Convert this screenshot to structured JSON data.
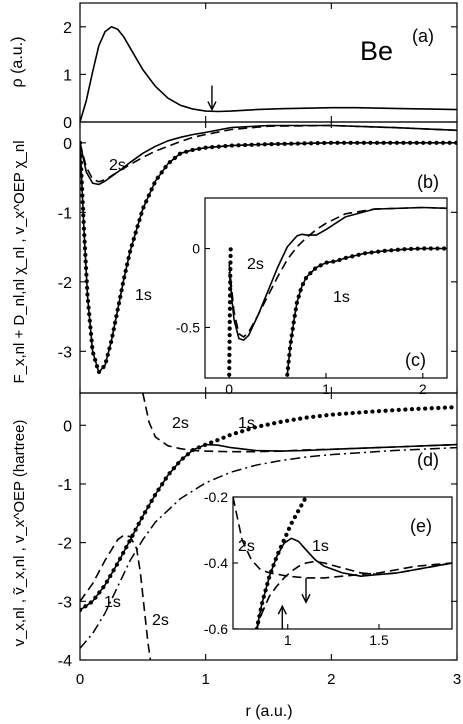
{
  "figure": {
    "element_label": "Be",
    "xlabel": "r (a.u.)",
    "x_ticks": [
      "0",
      "1",
      "2",
      "3"
    ]
  },
  "chart_data": [
    {
      "panel": "(a)",
      "type": "line",
      "ylabel": "ρ (a.u.)",
      "xlim": [
        0,
        3
      ],
      "ylim": [
        0,
        2.5
      ],
      "y_ticks": [
        0,
        1,
        2
      ],
      "annotations": [
        {
          "type": "arrow-down",
          "x": 1.05,
          "y": 0.22
        }
      ],
      "series": [
        {
          "style": "solid",
          "x": [
            0,
            0.05,
            0.1,
            0.15,
            0.2,
            0.25,
            0.3,
            0.35,
            0.4,
            0.5,
            0.6,
            0.7,
            0.8,
            0.9,
            1.0,
            1.1,
            1.2,
            1.4,
            1.6,
            1.8,
            2.0,
            2.2,
            2.4,
            2.6,
            2.8,
            3.0
          ],
          "y": [
            0,
            0.45,
            1.05,
            1.6,
            1.9,
            2.0,
            1.95,
            1.78,
            1.55,
            1.1,
            0.75,
            0.5,
            0.35,
            0.27,
            0.23,
            0.22,
            0.23,
            0.26,
            0.28,
            0.29,
            0.3,
            0.3,
            0.29,
            0.28,
            0.27,
            0.26
          ]
        }
      ]
    },
    {
      "panel": "(b)",
      "type": "line",
      "ylabel": "F_x,nl + D_nl,nl χ_nl , v_x^OEP χ_nl",
      "xlim": [
        0,
        3
      ],
      "ylim": [
        -3.6,
        0.3
      ],
      "y_ticks": [
        0,
        -1,
        -2,
        -3
      ],
      "labels": [
        "2s",
        "1s"
      ],
      "series": [
        {
          "style": "solid",
          "label": "2s",
          "x": [
            0,
            0.05,
            0.1,
            0.15,
            0.2,
            0.3,
            0.4,
            0.5,
            0.6,
            0.7,
            0.8,
            0.9,
            1.0,
            1.2,
            1.5,
            2.0,
            2.5,
            3.0
          ],
          "y": [
            0,
            -0.42,
            -0.58,
            -0.6,
            -0.55,
            -0.42,
            -0.28,
            -0.15,
            -0.05,
            0.03,
            0.08,
            0.12,
            0.15,
            0.22,
            0.25,
            0.25,
            0.22,
            0.18
          ]
        },
        {
          "style": "dashed",
          "label": "2s",
          "x": [
            0,
            0.05,
            0.1,
            0.15,
            0.2,
            0.3,
            0.4,
            0.5,
            0.6,
            0.7,
            0.8,
            0.9,
            1.0,
            1.2,
            1.5,
            2.0,
            2.5,
            3.0
          ],
          "y": [
            0,
            -0.35,
            -0.52,
            -0.56,
            -0.53,
            -0.42,
            -0.31,
            -0.21,
            -0.12,
            -0.05,
            0.02,
            0.08,
            0.12,
            0.19,
            0.24,
            0.25,
            0.22,
            0.18
          ]
        },
        {
          "style": "solid",
          "label": "1s",
          "x": [
            0,
            0.03,
            0.06,
            0.1,
            0.15,
            0.2,
            0.25,
            0.3,
            0.35,
            0.4,
            0.5,
            0.6,
            0.7,
            0.8,
            0.9,
            1.0,
            1.2,
            1.5,
            2.0,
            2.5,
            3.0
          ],
          "y": [
            0,
            -1.2,
            -2.2,
            -3.0,
            -3.3,
            -3.2,
            -2.85,
            -2.4,
            -1.95,
            -1.55,
            -0.95,
            -0.55,
            -0.3,
            -0.15,
            -0.1,
            -0.07,
            -0.04,
            -0.02,
            0,
            0,
            0
          ]
        },
        {
          "style": "dotted",
          "label": "1s",
          "x": [
            0,
            0.03,
            0.06,
            0.1,
            0.15,
            0.2,
            0.25,
            0.3,
            0.35,
            0.4,
            0.5,
            0.6,
            0.7,
            0.8,
            0.9,
            1.0,
            1.2,
            1.5,
            2.0,
            2.5,
            3.0
          ],
          "y": [
            0,
            -1.2,
            -2.2,
            -3.0,
            -3.3,
            -3.2,
            -2.85,
            -2.4,
            -1.95,
            -1.55,
            -0.95,
            -0.55,
            -0.3,
            -0.15,
            -0.1,
            -0.07,
            -0.04,
            -0.02,
            0,
            0,
            0
          ]
        }
      ]
    },
    {
      "panel": "(c)",
      "type": "line",
      "inset_of": "(b)",
      "xlim": [
        -0.25,
        2.25
      ],
      "ylim": [
        -0.82,
        0.32
      ],
      "x_ticks": [
        0,
        1,
        2
      ],
      "y_ticks": [
        0.0,
        -0.5
      ],
      "labels": [
        "2s",
        "1s"
      ],
      "series": [
        {
          "style": "solid",
          "label": "2s",
          "x": [
            0,
            0.05,
            0.1,
            0.15,
            0.2,
            0.3,
            0.4,
            0.5,
            0.6,
            0.7,
            0.75,
            0.8,
            0.9,
            1.0,
            1.2,
            1.5,
            2.0,
            2.25
          ],
          "y": [
            -0.15,
            -0.45,
            -0.57,
            -0.58,
            -0.55,
            -0.42,
            -0.27,
            -0.12,
            0.01,
            0.08,
            0.09,
            0.085,
            0.085,
            0.12,
            0.2,
            0.25,
            0.26,
            0.255
          ]
        },
        {
          "style": "dashed",
          "label": "2s",
          "x": [
            0,
            0.05,
            0.1,
            0.15,
            0.2,
            0.3,
            0.4,
            0.5,
            0.6,
            0.7,
            0.8,
            0.9,
            1.0,
            1.2,
            1.5,
            2.0,
            2.25
          ],
          "y": [
            -0.1,
            -0.4,
            -0.54,
            -0.56,
            -0.53,
            -0.42,
            -0.3,
            -0.18,
            -0.07,
            0.01,
            0.07,
            0.12,
            0.16,
            0.22,
            0.25,
            0.26,
            0.255
          ]
        },
        {
          "style": "solid",
          "label": "1s",
          "x": [
            0.6,
            0.63,
            0.67,
            0.7,
            0.75,
            0.8,
            0.9,
            1.0,
            1.1,
            1.2,
            1.4,
            1.6,
            1.8,
            2.0,
            2.25
          ],
          "y": [
            -0.8,
            -0.62,
            -0.45,
            -0.34,
            -0.24,
            -0.18,
            -0.12,
            -0.09,
            -0.08,
            -0.06,
            -0.03,
            -0.015,
            -0.005,
            0,
            0
          ]
        },
        {
          "style": "dotted",
          "label": "1s",
          "x": [
            0.6,
            0.63,
            0.67,
            0.7,
            0.75,
            0.8,
            0.9,
            1.0,
            1.1,
            1.2,
            1.4,
            1.6,
            1.8,
            2.0,
            2.25
          ],
          "y": [
            -0.8,
            -0.62,
            -0.45,
            -0.34,
            -0.24,
            -0.18,
            -0.12,
            -0.09,
            -0.08,
            -0.06,
            -0.03,
            -0.015,
            -0.005,
            0,
            0
          ]
        },
        {
          "style": "dotted",
          "label": "1s",
          "x": [
            0.0,
            0.005,
            0.01,
            0.015
          ],
          "y": [
            -0.8,
            -0.5,
            -0.2,
            0.0
          ]
        }
      ]
    },
    {
      "panel": "(d)",
      "type": "line",
      "ylabel": "v_x,nl , ṽ_x,nl , v_x^OEP (hartree)",
      "xlim": [
        0,
        3
      ],
      "ylim": [
        -4,
        0.55
      ],
      "y_ticks": [
        0,
        -1,
        -2,
        -3,
        -4
      ],
      "labels": [
        "2s",
        "1s",
        "1s",
        "2s"
      ],
      "series": [
        {
          "style": "solid",
          "x": [
            0,
            0.1,
            0.2,
            0.3,
            0.4,
            0.5,
            0.6,
            0.7,
            0.8,
            0.9,
            1.0,
            1.1,
            1.2,
            1.4,
            1.6,
            1.8,
            2.0,
            2.5,
            3.0
          ],
          "y": [
            -3.15,
            -3.0,
            -2.72,
            -2.35,
            -1.95,
            -1.55,
            -1.18,
            -0.85,
            -0.6,
            -0.42,
            -0.33,
            -0.34,
            -0.38,
            -0.43,
            -0.44,
            -0.43,
            -0.41,
            -0.37,
            -0.33
          ]
        },
        {
          "style": "dotted",
          "x": [
            0,
            0.1,
            0.2,
            0.3,
            0.4,
            0.5,
            0.6,
            0.7,
            0.8,
            0.9,
            1.0,
            1.1,
            1.2,
            1.4,
            1.6,
            1.8,
            2.0,
            2.3,
            2.6,
            3.0
          ],
          "y": [
            -3.15,
            -3.0,
            -2.72,
            -2.35,
            -1.95,
            -1.55,
            -1.18,
            -0.85,
            -0.6,
            -0.42,
            -0.33,
            -0.25,
            -0.16,
            -0.03,
            0.06,
            0.13,
            0.18,
            0.23,
            0.27,
            0.31
          ]
        },
        {
          "style": "dashed",
          "label": "2s",
          "x": [
            0.5,
            0.55,
            0.6,
            0.7,
            0.8,
            0.9,
            1.0,
            1.2,
            1.4,
            1.6,
            1.8,
            2.0,
            2.5,
            3.0
          ],
          "y": [
            0.55,
            0.05,
            -0.2,
            -0.35,
            -0.4,
            -0.43,
            -0.44,
            -0.45,
            -0.45,
            -0.44,
            -0.42,
            -0.41,
            -0.37,
            -0.33
          ]
        },
        {
          "style": "dashed",
          "label": "2s",
          "x": [
            0,
            0.1,
            0.2,
            0.3,
            0.35,
            0.4,
            0.45,
            0.48,
            0.51,
            0.54,
            0.56
          ],
          "y": [
            -3.0,
            -2.7,
            -2.3,
            -1.95,
            -1.87,
            -1.9,
            -2.1,
            -2.5,
            -3.1,
            -3.7,
            -4.0
          ]
        },
        {
          "style": "dashdot",
          "label": "1s",
          "x": [
            0,
            0.1,
            0.2,
            0.3,
            0.4,
            0.5,
            0.6,
            0.8,
            1.0,
            1.2,
            1.4,
            1.6,
            1.8,
            2.0,
            2.5,
            3.0
          ],
          "y": [
            -3.8,
            -3.55,
            -3.2,
            -2.75,
            -2.3,
            -1.95,
            -1.65,
            -1.25,
            -0.98,
            -0.8,
            -0.68,
            -0.6,
            -0.54,
            -0.5,
            -0.43,
            -0.38
          ]
        }
      ]
    },
    {
      "panel": "(e)",
      "type": "line",
      "inset_of": "(d)",
      "xlim": [
        0.7,
        1.9
      ],
      "ylim": [
        -0.6,
        -0.2
      ],
      "x_ticks": [
        1.0,
        1.5
      ],
      "y_ticks": [
        -0.2,
        -0.4,
        -0.6
      ],
      "labels": [
        "2s",
        "1s"
      ],
      "annotations": [
        {
          "type": "arrow-up",
          "x": 0.97,
          "y": -0.525
        },
        {
          "type": "arrow-down",
          "x": 1.1,
          "y": -0.525
        }
      ],
      "series": [
        {
          "style": "solid",
          "x": [
            0.83,
            0.86,
            0.9,
            0.94,
            0.98,
            1.02,
            1.06,
            1.1,
            1.15,
            1.2,
            1.3,
            1.4,
            1.5,
            1.6,
            1.7,
            1.8,
            1.9
          ],
          "y": [
            -0.6,
            -0.52,
            -0.44,
            -0.38,
            -0.34,
            -0.325,
            -0.335,
            -0.36,
            -0.39,
            -0.41,
            -0.43,
            -0.44,
            -0.435,
            -0.43,
            -0.42,
            -0.41,
            -0.4
          ]
        },
        {
          "style": "dotted",
          "x": [
            0.83,
            0.86,
            0.9,
            0.94,
            0.98,
            1.02,
            1.06,
            1.1
          ],
          "y": [
            -0.6,
            -0.52,
            -0.44,
            -0.38,
            -0.33,
            -0.28,
            -0.24,
            -0.2
          ]
        },
        {
          "style": "dashed",
          "label": "2s",
          "x": [
            0.7,
            0.75,
            0.8,
            0.85,
            0.9,
            0.95,
            1.0,
            1.1,
            1.2,
            1.3,
            1.4,
            1.5,
            1.6,
            1.7,
            1.8,
            1.9
          ],
          "y": [
            -0.2,
            -0.33,
            -0.39,
            -0.42,
            -0.43,
            -0.435,
            -0.44,
            -0.445,
            -0.445,
            -0.44,
            -0.435,
            -0.43,
            -0.42,
            -0.41,
            -0.405,
            -0.4
          ]
        },
        {
          "style": "dashed",
          "x": [
            0.83,
            0.86,
            0.9,
            0.94,
            0.98,
            1.02,
            1.06,
            1.1,
            1.15,
            1.2,
            1.3,
            1.4,
            1.5,
            1.6,
            1.7,
            1.8,
            1.9
          ],
          "y": [
            -0.6,
            -0.55,
            -0.5,
            -0.47,
            -0.445,
            -0.425,
            -0.41,
            -0.4,
            -0.395,
            -0.4,
            -0.415,
            -0.43,
            -0.435,
            -0.43,
            -0.42,
            -0.41,
            -0.4
          ]
        }
      ]
    }
  ]
}
